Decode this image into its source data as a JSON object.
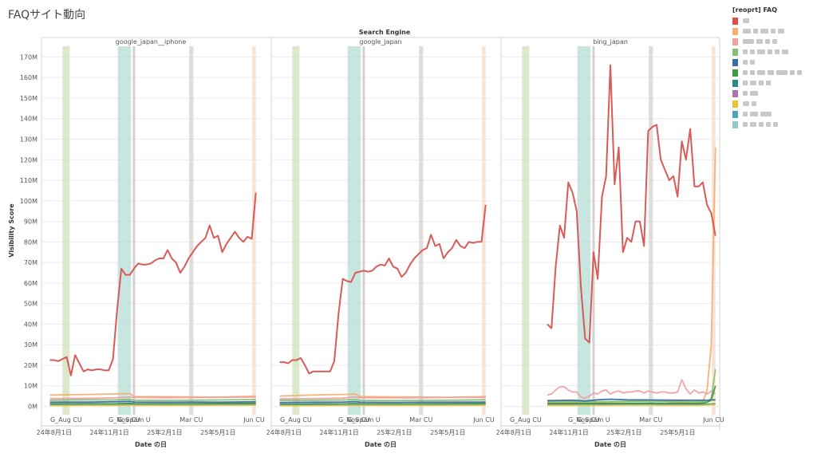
{
  "page": {
    "title": "FAQサイト動向"
  },
  "legend": {
    "title": "[reoprt] FAQ",
    "items": [
      {
        "color": "#d6524f",
        "label": ""
      },
      {
        "color": "#f5b072",
        "label": ""
      },
      {
        "color": "#f2a0a2",
        "label": ""
      },
      {
        "color": "#84c174",
        "label": ""
      },
      {
        "color": "#3b6ba5",
        "label": ""
      },
      {
        "color": "#3f9a45",
        "label": ""
      },
      {
        "color": "#2a8a86",
        "label": ""
      },
      {
        "color": "#a874b4",
        "label": ""
      },
      {
        "color": "#e6c338",
        "label": ""
      },
      {
        "color": "#4ea3b5",
        "label": ""
      },
      {
        "color": "#96c7c7",
        "label": ""
      }
    ]
  },
  "chart_data": {
    "type": "line",
    "title": "Search Engine",
    "xlabel": "Date の日",
    "ylabel": "Visibility Score",
    "ylim": [
      0,
      172
    ],
    "y_ticks": [
      "0M",
      "10M",
      "20M",
      "30M",
      "40M",
      "50M",
      "60M",
      "70M",
      "80M",
      "90M",
      "100M",
      "110M",
      "120M",
      "130M",
      "140M",
      "150M",
      "160M",
      "170M"
    ],
    "x_ticks": [
      {
        "label": "24年8月1日",
        "x": 0
      },
      {
        "label": "24年11月1日",
        "x": 92
      },
      {
        "label": "25年2月1日",
        "x": 184
      },
      {
        "label": "25年5月1日",
        "x": 273
      }
    ],
    "x_range": [
      -21,
      343
    ],
    "grid": true,
    "annotations": [
      {
        "label": "G_Aug CU",
        "start": 14,
        "end": 26,
        "color": "#cfe0b8"
      },
      {
        "label": "G_Nov CU",
        "start": 106,
        "end": 128,
        "color": "#b7dcd5"
      },
      {
        "label": "G_Spam U",
        "start": 131,
        "end": 135,
        "color": "#c4c4c4"
      },
      {
        "label": "Mar CU",
        "start": 225,
        "end": 232,
        "color": "#d9d1cc"
      },
      {
        "label": "Jun CU",
        "start": 330,
        "end": 336,
        "color": "#f8d8c8"
      }
    ],
    "panels": [
      {
        "name": "google_japan__iphone",
        "series": [
          {
            "color": "#d6524f",
            "x": [
              -7,
              0,
              7,
              14,
              21,
              28,
              35,
              42,
              49,
              56,
              63,
              70,
              77,
              84,
              91,
              98,
              105,
              112,
              119,
              126,
              133,
              140,
              147,
              154,
              161,
              168,
              175,
              182,
              189,
              196,
              203,
              210,
              217,
              224,
              231,
              238,
              245,
              252,
              259,
              266,
              273,
              280,
              287,
              294,
              301,
              308,
              315,
              322,
              329,
              336
            ],
            "values": [
              22.5,
              22.5,
              22.0,
              23.0,
              24.0,
              15.0,
              25.0,
              21.0,
              17.0,
              18.0,
              17.5,
              18.0,
              18.0,
              17.5,
              17.5,
              23.0,
              47.0,
              67.0,
              64.0,
              64.0,
              67.0,
              69.5,
              69.0,
              69.0,
              69.5,
              71.0,
              72.0,
              72.0,
              76.0,
              72.0,
              70.0,
              65.0,
              68.0,
              72.0,
              75.0,
              78.0,
              80.0,
              82.0,
              88.0,
              82.0,
              83.0,
              75.0,
              79.0,
              82.0,
              85.0,
              82.0,
              80.0,
              82.5,
              81.5,
              104.0
            ]
          },
          {
            "color": "#f5b072",
            "x": [
              -7,
              56,
              98,
              126,
              133,
              189,
              231,
              273,
              336
            ],
            "values": [
              5.5,
              5.8,
              6.0,
              6.2,
              4.8,
              4.7,
              4.6,
              4.5,
              5.0
            ]
          },
          {
            "color": "#f2a0a2",
            "x": [
              -7,
              56,
              98,
              126,
              133,
              189,
              231,
              273,
              336
            ],
            "values": [
              3.8,
              3.9,
              4.1,
              4.5,
              4.3,
              4.2,
              4.3,
              4.4,
              4.5
            ]
          },
          {
            "color": "#84c174",
            "x": [
              -7,
              56,
              98,
              126,
              133,
              189,
              231,
              273,
              336
            ],
            "values": [
              3.0,
              3.2,
              3.1,
              3.4,
              3.0,
              2.9,
              3.0,
              3.1,
              3.3
            ]
          },
          {
            "color": "#3b6ba5",
            "x": [
              -7,
              56,
              98,
              126,
              133,
              189,
              231,
              273,
              336
            ],
            "values": [
              2.0,
              2.1,
              2.2,
              2.4,
              2.1,
              2.0,
              2.1,
              2.0,
              2.2
            ]
          },
          {
            "color": "#3f9a45",
            "x": [
              -7,
              56,
              98,
              126,
              133,
              189,
              231,
              273,
              336
            ],
            "values": [
              1.2,
              1.3,
              1.2,
              1.4,
              1.3,
              1.2,
              1.3,
              1.4,
              1.5
            ]
          },
          {
            "color": "#2a8a86",
            "x": [
              -7,
              56,
              98,
              126,
              133,
              189,
              231,
              273,
              336
            ],
            "values": [
              0.8,
              0.9,
              0.8,
              1.0,
              0.9,
              0.9,
              0.8,
              0.9,
              1.0
            ]
          },
          {
            "color": "#e6c338",
            "x": [
              -7,
              56,
              98,
              126,
              133,
              189,
              231,
              273,
              336
            ],
            "values": [
              0.4,
              0.5,
              0.5,
              0.6,
              0.5,
              0.5,
              0.5,
              0.6,
              0.6
            ]
          }
        ]
      },
      {
        "name": "google_japan",
        "series": [
          {
            "color": "#d6524f",
            "x": [
              -7,
              0,
              7,
              14,
              21,
              28,
              35,
              42,
              49,
              56,
              63,
              70,
              77,
              84,
              91,
              98,
              105,
              112,
              119,
              126,
              133,
              140,
              147,
              154,
              161,
              168,
              175,
              182,
              189,
              196,
              203,
              210,
              217,
              224,
              231,
              238,
              245,
              252,
              259,
              266,
              273,
              280,
              287,
              294,
              301,
              308,
              315,
              322,
              329,
              336
            ],
            "values": [
              21.5,
              21.5,
              21.0,
              22.5,
              22.5,
              23.5,
              20.0,
              16.0,
              17.0,
              17.0,
              17.0,
              17.0,
              17.0,
              22.0,
              45.0,
              62.0,
              61.0,
              60.5,
              65.0,
              65.5,
              66.0,
              65.5,
              66.0,
              68.0,
              69.0,
              68.5,
              72.0,
              68.0,
              67.0,
              63.0,
              65.0,
              69.0,
              72.0,
              74.0,
              76.0,
              77.0,
              83.5,
              78.0,
              79.0,
              72.0,
              75.0,
              77.0,
              81.0,
              78.0,
              77.0,
              80.0,
              79.5,
              80.0,
              80.0,
              98.0
            ]
          },
          {
            "color": "#f5b072",
            "x": [
              -7,
              56,
              98,
              119,
              126,
              189,
              231,
              273,
              336
            ],
            "values": [
              5.0,
              5.6,
              5.8,
              6.0,
              4.8,
              4.6,
              4.5,
              4.4,
              4.8
            ]
          },
          {
            "color": "#f2a0a2",
            "x": [
              -7,
              56,
              98,
              119,
              126,
              189,
              231,
              273,
              336
            ],
            "values": [
              3.6,
              3.8,
              4.0,
              4.6,
              4.2,
              4.1,
              4.2,
              4.3,
              4.4
            ]
          },
          {
            "color": "#84c174",
            "x": [
              -7,
              56,
              98,
              119,
              126,
              189,
              231,
              273,
              336
            ],
            "values": [
              2.9,
              3.0,
              3.1,
              3.3,
              2.9,
              2.8,
              2.9,
              3.0,
              3.2
            ]
          },
          {
            "color": "#3b6ba5",
            "x": [
              -7,
              56,
              98,
              119,
              126,
              189,
              231,
              273,
              336
            ],
            "values": [
              1.9,
              2.0,
              2.1,
              2.3,
              2.0,
              1.9,
              2.0,
              2.0,
              2.1
            ]
          },
          {
            "color": "#3f9a45",
            "x": [
              -7,
              56,
              98,
              119,
              126,
              189,
              231,
              273,
              336
            ],
            "values": [
              1.1,
              1.2,
              1.2,
              1.3,
              1.2,
              1.1,
              1.2,
              1.3,
              1.4
            ]
          },
          {
            "color": "#2a8a86",
            "x": [
              -7,
              56,
              98,
              119,
              126,
              189,
              231,
              273,
              336
            ],
            "values": [
              0.7,
              0.8,
              0.8,
              0.9,
              0.8,
              0.8,
              0.8,
              0.9,
              0.9
            ]
          },
          {
            "color": "#e6c338",
            "x": [
              -7,
              56,
              98,
              119,
              126,
              189,
              231,
              273,
              336
            ],
            "values": [
              0.4,
              0.4,
              0.5,
              0.5,
              0.5,
              0.5,
              0.5,
              0.5,
              0.6
            ]
          }
        ]
      },
      {
        "name": "bing_japan",
        "series": [
          {
            "color": "#d6524f",
            "x": [
              56,
              63,
              70,
              77,
              84,
              91,
              98,
              105,
              112,
              119,
              126,
              133,
              140,
              147,
              154,
              161,
              168,
              175,
              182,
              189,
              196,
              203,
              210,
              217,
              224,
              231,
              238,
              245,
              252,
              259,
              266,
              273,
              280,
              287,
              294,
              301,
              308,
              315,
              322,
              329,
              336
            ],
            "values": [
              40.0,
              38.0,
              68.0,
              88.0,
              82.0,
              109.0,
              104.0,
              95.0,
              58.0,
              33.0,
              31.0,
              75.0,
              62.0,
              102.0,
              112.0,
              166.0,
              108.0,
              126.0,
              75.0,
              82.0,
              80.0,
              90.0,
              90.0,
              78.0,
              134.0,
              136.0,
              137.0,
              120.0,
              115.0,
              110.0,
              112.0,
              102.0,
              129.0,
              120.0,
              135.0,
              107.0,
              107.0,
              109.0,
              98.0,
              94.0,
              83.0
            ]
          },
          {
            "color": "#f5b072",
            "x": [
              56,
              119,
              189,
              231,
              273,
              301,
              315,
              322,
              329,
              336
            ],
            "values": [
              2.0,
              1.5,
              2.5,
              3.0,
              2.0,
              1.5,
              2.0,
              8.0,
              30.0,
              126.0
            ]
          },
          {
            "color": "#f2a0a2",
            "x": [
              56,
              63,
              70,
              77,
              84,
              91,
              98,
              105,
              112,
              119,
              126,
              133,
              140,
              147,
              154,
              161,
              168,
              175,
              182,
              189,
              196,
              203,
              210,
              217,
              224,
              231,
              238,
              245,
              252,
              259,
              266,
              273,
              280,
              287,
              294,
              301,
              308,
              315,
              322,
              329,
              336
            ],
            "values": [
              5.5,
              6.0,
              8.0,
              9.5,
              9.5,
              8.0,
              7.0,
              7.0,
              4.5,
              4.0,
              5.0,
              6.5,
              6.0,
              7.5,
              8.0,
              6.0,
              7.0,
              7.5,
              6.5,
              7.0,
              7.0,
              7.5,
              7.5,
              6.5,
              7.5,
              7.0,
              6.5,
              7.0,
              7.0,
              6.5,
              6.5,
              7.0,
              13.0,
              8.5,
              6.0,
              8.0,
              6.5,
              7.0,
              6.0,
              7.5,
              6.0
            ]
          },
          {
            "color": "#84c174",
            "x": [
              56,
              119,
              189,
              231,
              273,
              301,
              315,
              322,
              329,
              336
            ],
            "values": [
              2.5,
              2.2,
              2.4,
              2.6,
              2.4,
              2.2,
              2.5,
              2.0,
              4.0,
              18.0
            ]
          },
          {
            "color": "#3b6ba5",
            "x": [
              56,
              98,
              119,
              140,
              161,
              189,
              231,
              273,
              322,
              336
            ],
            "values": [
              2.8,
              3.0,
              2.6,
              3.2,
              3.5,
              3.2,
              3.1,
              3.0,
              3.0,
              3.2
            ]
          },
          {
            "color": "#3f9a45",
            "x": [
              56,
              119,
              189,
              231,
              273,
              301,
              315,
              322,
              329,
              336
            ],
            "values": [
              1.5,
              1.4,
              1.5,
              1.6,
              1.5,
              1.4,
              1.6,
              2.0,
              3.0,
              10.0
            ]
          },
          {
            "color": "#2a8a86",
            "x": [
              56,
              119,
              189,
              231,
              273,
              315,
              336
            ],
            "values": [
              1.0,
              0.9,
              1.0,
              1.1,
              1.0,
              1.0,
              1.2
            ]
          },
          {
            "color": "#e6c338",
            "x": [
              56,
              119,
              189,
              231,
              273,
              315,
              336
            ],
            "values": [
              0.5,
              0.5,
              0.6,
              0.6,
              0.5,
              0.6,
              0.8
            ]
          }
        ]
      }
    ]
  }
}
